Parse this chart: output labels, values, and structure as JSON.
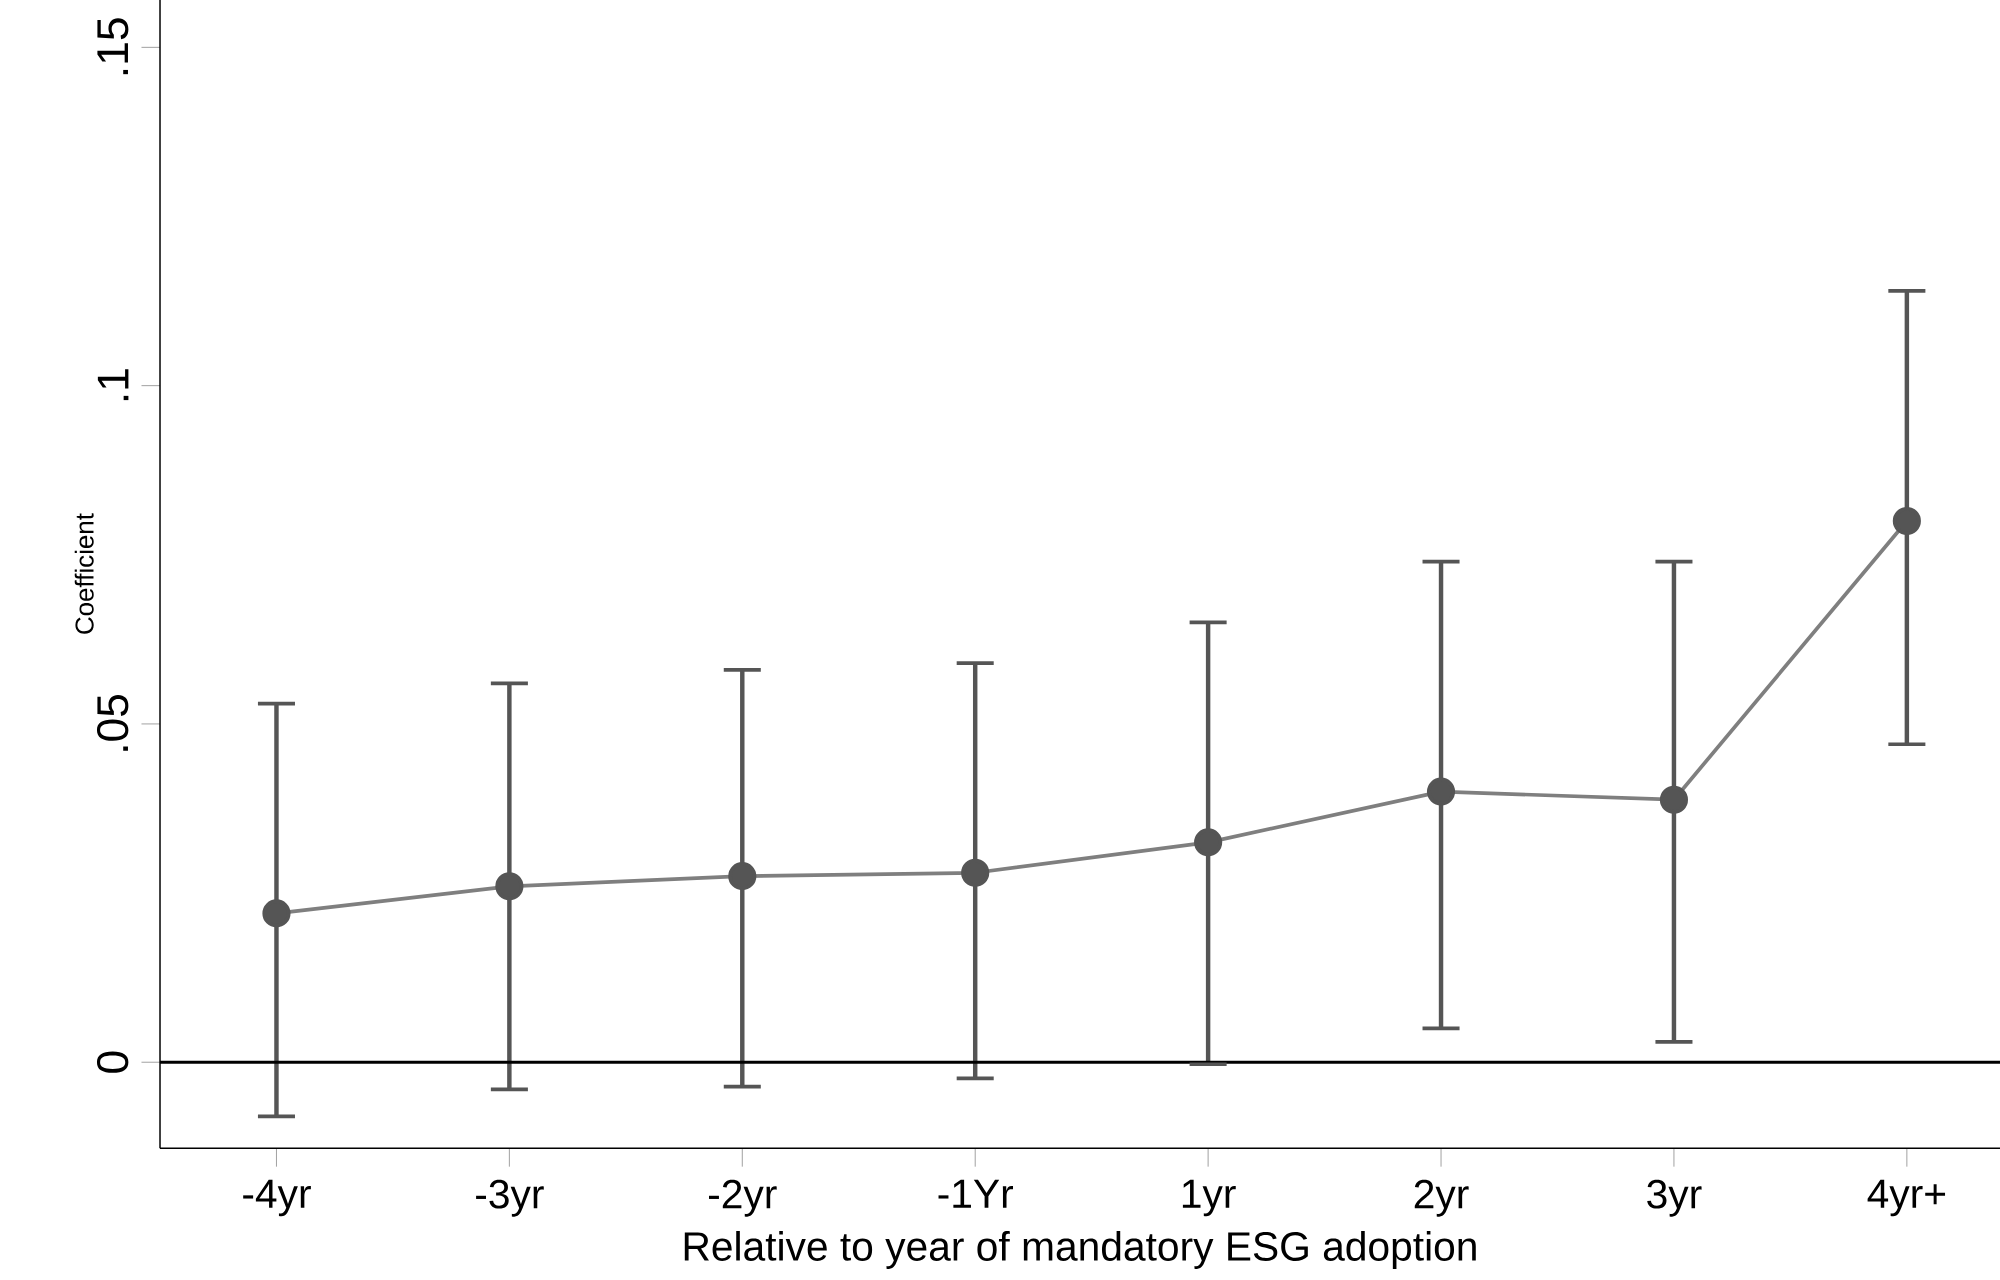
{
  "chart_data": {
    "type": "line",
    "xlabel": "Relative to year of mandatory ESG adoption",
    "ylabel": "Coefficient",
    "categories": [
      "-4yr",
      "-3yr",
      "-2yr",
      "-1Yr",
      "1yr",
      "2yr",
      "3yr",
      "4yr+"
    ],
    "series": [
      {
        "color": "#7f7f7f",
        "values": [
          0.022,
          0.026,
          0.0275,
          0.028,
          0.0325,
          0.04,
          0.0388,
          0.08
        ],
        "errors": [
          [
            -0.008,
            0.053
          ],
          [
            -0.004,
            0.056
          ],
          [
            -0.0036,
            0.058
          ],
          [
            -0.0024,
            0.059
          ],
          [
            -0.0003,
            0.065
          ],
          [
            0.005,
            0.074
          ],
          [
            0.003,
            0.074
          ],
          [
            0.047,
            0.114
          ]
        ]
      }
    ],
    "ylim": [
      -0.0127,
      0.157
    ],
    "yticks": [
      0,
      {
        "value": 0.05,
        "label": ".05"
      },
      {
        "value": 0.1,
        "label": ".1"
      },
      {
        "value": 0.15,
        "label": ".15"
      }
    ],
    "ref_lines": [
      {
        "axis": "y",
        "value": 0,
        "color": "#000000"
      }
    ],
    "marker": "circle",
    "line_style": "solid"
  }
}
